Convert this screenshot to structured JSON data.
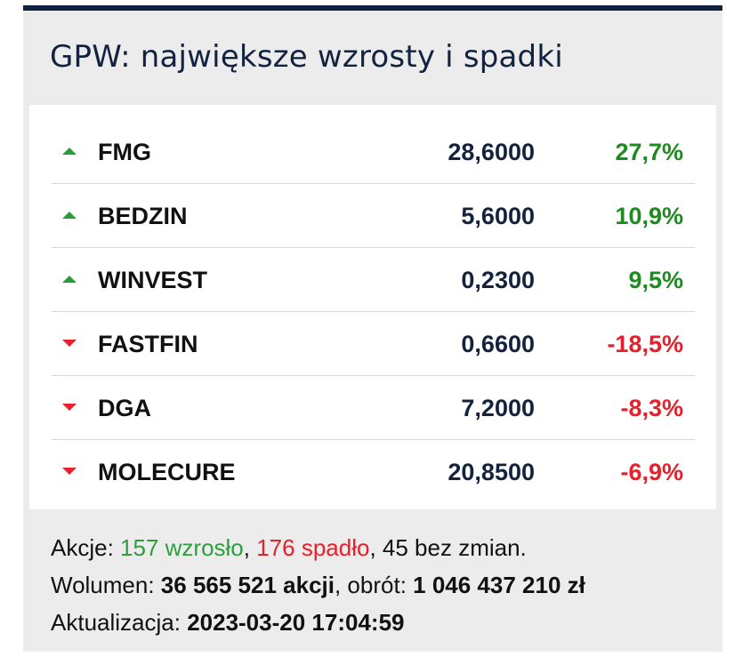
{
  "title": "GPW: największe wzrosty i spadki",
  "rows": [
    {
      "direction": "up",
      "name": "FMG",
      "price": "28,6000",
      "change": "27,7%"
    },
    {
      "direction": "up",
      "name": "BEDZIN",
      "price": "5,6000",
      "change": "10,9%"
    },
    {
      "direction": "up",
      "name": "WINVEST",
      "price": "0,2300",
      "change": "9,5%"
    },
    {
      "direction": "down",
      "name": "FASTFIN",
      "price": "0,6600",
      "change": "-18,5%"
    },
    {
      "direction": "down",
      "name": "DGA",
      "price": "7,2000",
      "change": "-8,3%"
    },
    {
      "direction": "down",
      "name": "MOLECURE",
      "price": "20,8500",
      "change": "-6,9%"
    }
  ],
  "summary": {
    "stocks_label": "Akcje: ",
    "rose": "157 wzrosło",
    "sep1": ", ",
    "fell": "176 spadło",
    "unchanged": ", 45 bez zmian.",
    "volume_label": "Wolumen: ",
    "volume_value": "36 565 521 akcji",
    "turnover_label": ", obrót: ",
    "turnover_value": "1 046 437 210 zł",
    "updated_label": "Aktualizacja: ",
    "updated_value": "2023-03-20 17:04:59"
  },
  "colors": {
    "header_border": "#13233f",
    "up": "#1f8a1f",
    "down": "#e8202b",
    "price": "#13233f"
  },
  "icons": {
    "up": "triangle-up-icon",
    "down": "triangle-down-icon"
  }
}
